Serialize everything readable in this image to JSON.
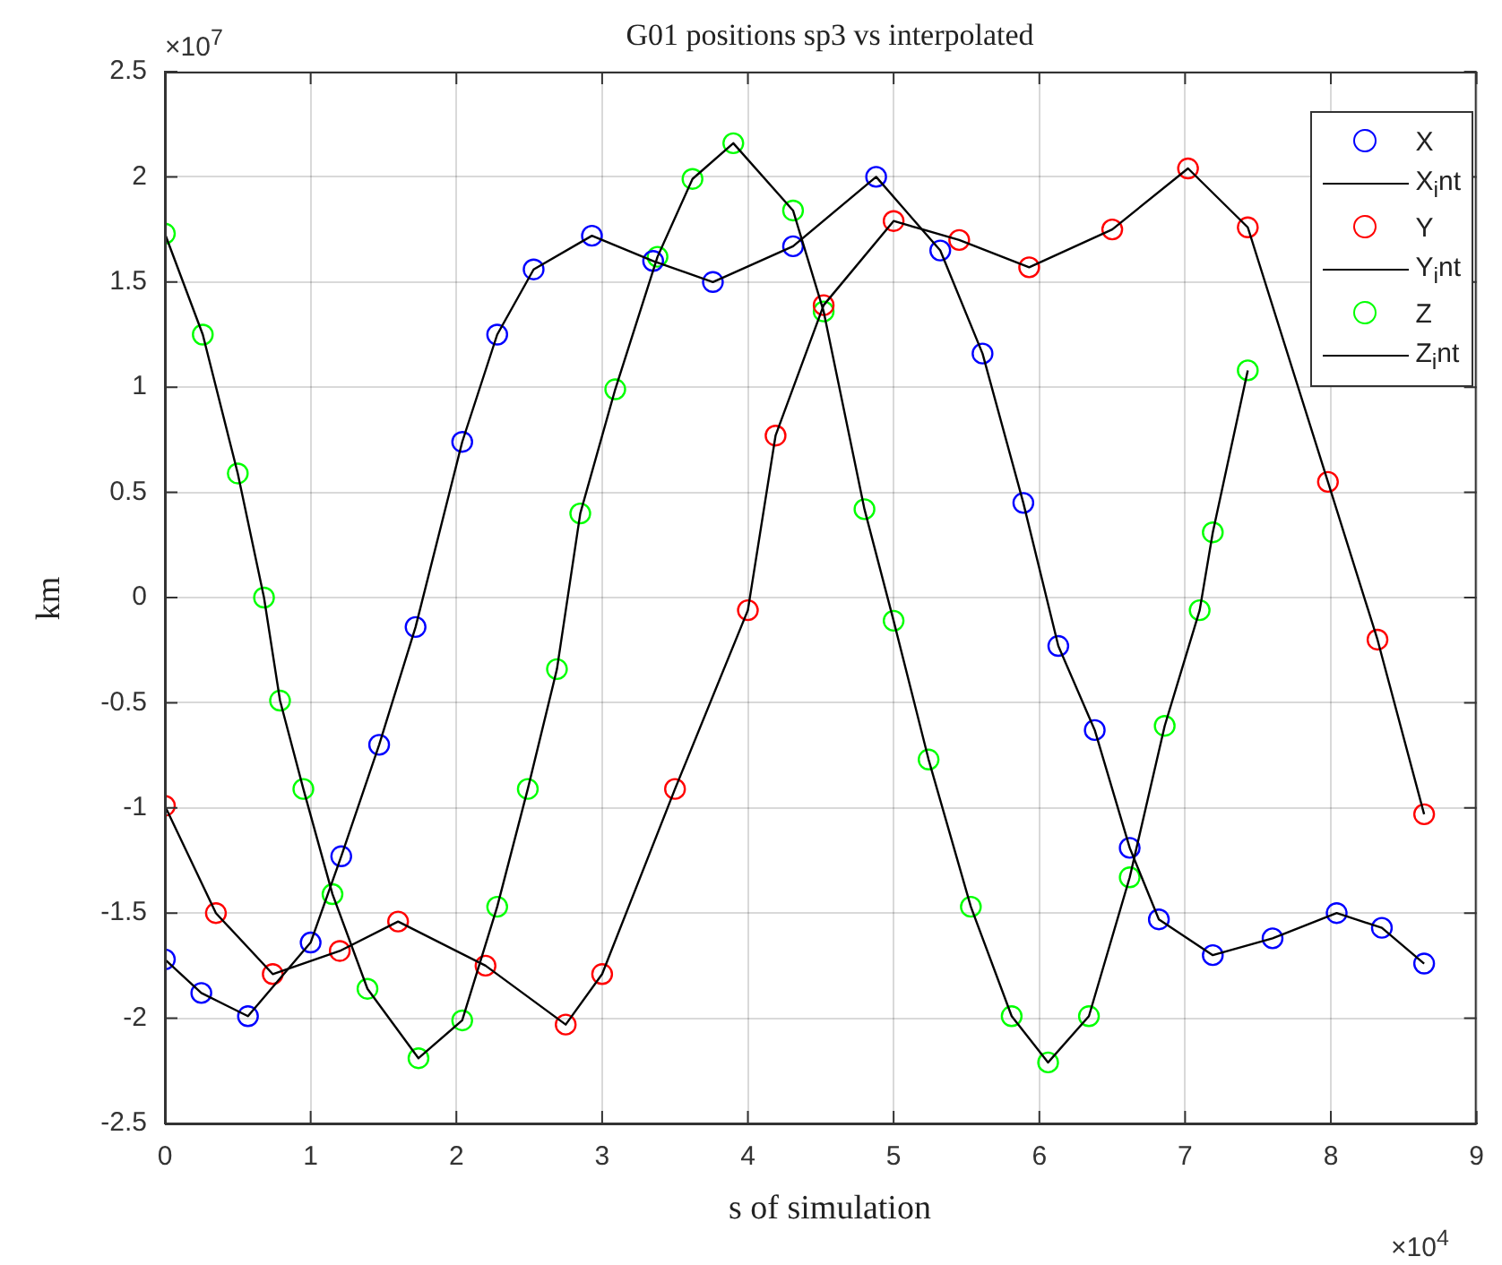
{
  "chart_data": {
    "type": "line",
    "title": "G01 positions sp3 vs interpolated",
    "xlabel": "s of simulation",
    "ylabel": "km",
    "annotations": [
      "×10$^{7}$",
      "×10$^{4}$"
    ],
    "xlim": [
      0,
      9
    ],
    "xticks": [
      0,
      1,
      2,
      3,
      4,
      5,
      6,
      7,
      8,
      9
    ],
    "ylim": [
      -2.5,
      2.5
    ],
    "yticks": [
      -2.5,
      -2,
      -1.5,
      -1,
      -0.5,
      0,
      0.5,
      1,
      1.5,
      2,
      2.5
    ],
    "grid": true,
    "legend": "top right",
    "series": [
      {
        "name": "X",
        "type": "scatter",
        "marker": "circle",
        "color": "#0000ff",
        "x": [
          0,
          0.25,
          0.57,
          1,
          1.21,
          1.47,
          1.72,
          2.04,
          2.28,
          2.53,
          2.93,
          3.35,
          3.76,
          4.31,
          4.88,
          5.32,
          5.61,
          5.89,
          6.13,
          6.38,
          6.62,
          6.82,
          7.19,
          7.6,
          8.04,
          8.35,
          8.64
        ],
        "values": [
          -1.72,
          -1.88,
          -1.99,
          -1.64,
          -1.23,
          -0.7,
          -0.14,
          0.74,
          1.25,
          1.56,
          1.72,
          1.6,
          1.5,
          1.67,
          2.0,
          1.65,
          1.16,
          0.45,
          -0.23,
          -0.63,
          -1.19,
          -1.53,
          -1.7,
          -1.62,
          -1.5,
          -1.57,
          -1.74
        ]
      },
      {
        "name": "X$_{i}$nt",
        "type": "line",
        "marker": "none",
        "color": "#000000",
        "x": [
          0,
          0.25,
          0.57,
          1,
          1.21,
          1.47,
          1.72,
          2.04,
          2.28,
          2.53,
          2.93,
          3.35,
          3.76,
          4.31,
          4.88,
          5.32,
          5.61,
          5.89,
          6.13,
          6.38,
          6.62,
          6.82,
          7.19,
          7.6,
          8.04,
          8.35,
          8.64
        ],
        "values": [
          -1.72,
          -1.88,
          -1.99,
          -1.64,
          -1.23,
          -0.7,
          -0.14,
          0.74,
          1.25,
          1.56,
          1.72,
          1.6,
          1.5,
          1.67,
          2.0,
          1.65,
          1.16,
          0.45,
          -0.23,
          -0.63,
          -1.19,
          -1.53,
          -1.7,
          -1.62,
          -1.5,
          -1.57,
          -1.74
        ]
      },
      {
        "name": "Y",
        "type": "scatter",
        "marker": "circle",
        "color": "#ff0000",
        "x": [
          0,
          0.35,
          0.74,
          1.2,
          1.6,
          2.2,
          2.75,
          3,
          3.5,
          4,
          4.19,
          4.52,
          5,
          5.45,
          5.93,
          6.5,
          7.02,
          7.43,
          7.98,
          8.32,
          8.64
        ],
        "values": [
          -0.99,
          -1.5,
          -1.79,
          -1.68,
          -1.54,
          -1.75,
          -2.03,
          -1.79,
          -0.91,
          -0.06,
          0.77,
          1.39,
          1.79,
          1.7,
          1.57,
          1.75,
          2.04,
          1.76,
          0.55,
          -0.2,
          -1.03
        ]
      },
      {
        "name": "Y$_{i}$nt",
        "type": "line",
        "marker": "none",
        "color": "#000000",
        "x": [
          0,
          0.35,
          0.74,
          1.2,
          1.6,
          2.2,
          2.75,
          3,
          3.5,
          4,
          4.19,
          4.52,
          5,
          5.45,
          5.93,
          6.5,
          7.02,
          7.43,
          7.98,
          8.32,
          8.64
        ],
        "values": [
          -0.99,
          -1.5,
          -1.79,
          -1.68,
          -1.54,
          -1.75,
          -2.03,
          -1.79,
          -0.91,
          -0.06,
          0.77,
          1.39,
          1.79,
          1.7,
          1.57,
          1.75,
          2.04,
          1.76,
          0.55,
          -0.2,
          -1.03
        ]
      },
      {
        "name": "Z",
        "type": "scatter",
        "marker": "circle",
        "color": "#00ff00",
        "x": [
          0,
          0.26,
          0.5,
          0.68,
          0.79,
          0.95,
          1.15,
          1.39,
          1.74,
          2.04,
          2.28,
          2.49,
          2.69,
          2.85,
          3.09,
          3.38,
          3.62,
          3.9,
          4.31,
          4.52,
          4.8,
          5,
          5.24,
          5.53,
          5.81,
          6.06,
          6.34,
          6.62,
          6.86,
          7.1,
          7.19,
          7.43
        ],
        "values": [
          1.73,
          1.25,
          0.59,
          0,
          -0.49,
          -0.91,
          -1.41,
          -1.86,
          -2.19,
          -2.01,
          -1.47,
          -0.91,
          -0.34,
          0.4,
          0.99,
          1.62,
          1.99,
          2.16,
          1.84,
          1.36,
          0.42,
          -0.11,
          -0.77,
          -1.47,
          -1.99,
          -2.21,
          -1.99,
          -1.33,
          -0.61,
          -0.06,
          0.31,
          1.08
        ]
      },
      {
        "name": "Z$_{i}$nt",
        "type": "line",
        "marker": "none",
        "color": "#000000",
        "x": [
          0,
          0.26,
          0.5,
          0.68,
          0.79,
          0.95,
          1.15,
          1.39,
          1.74,
          2.04,
          2.28,
          2.49,
          2.69,
          2.85,
          3.09,
          3.38,
          3.62,
          3.9,
          4.31,
          4.52,
          4.8,
          5,
          5.24,
          5.53,
          5.81,
          6.06,
          6.34,
          6.62,
          6.86,
          7.1,
          7.19,
          7.43
        ],
        "values": [
          1.73,
          1.25,
          0.59,
          0,
          -0.49,
          -0.91,
          -1.41,
          -1.86,
          -2.19,
          -2.01,
          -1.47,
          -0.91,
          -0.34,
          0.4,
          0.99,
          1.62,
          1.99,
          2.16,
          1.84,
          1.36,
          0.42,
          -0.11,
          -0.77,
          -1.47,
          -1.99,
          -2.21,
          -1.99,
          -1.33,
          -0.61,
          -0.06,
          0.31,
          1.08
        ]
      }
    ]
  }
}
